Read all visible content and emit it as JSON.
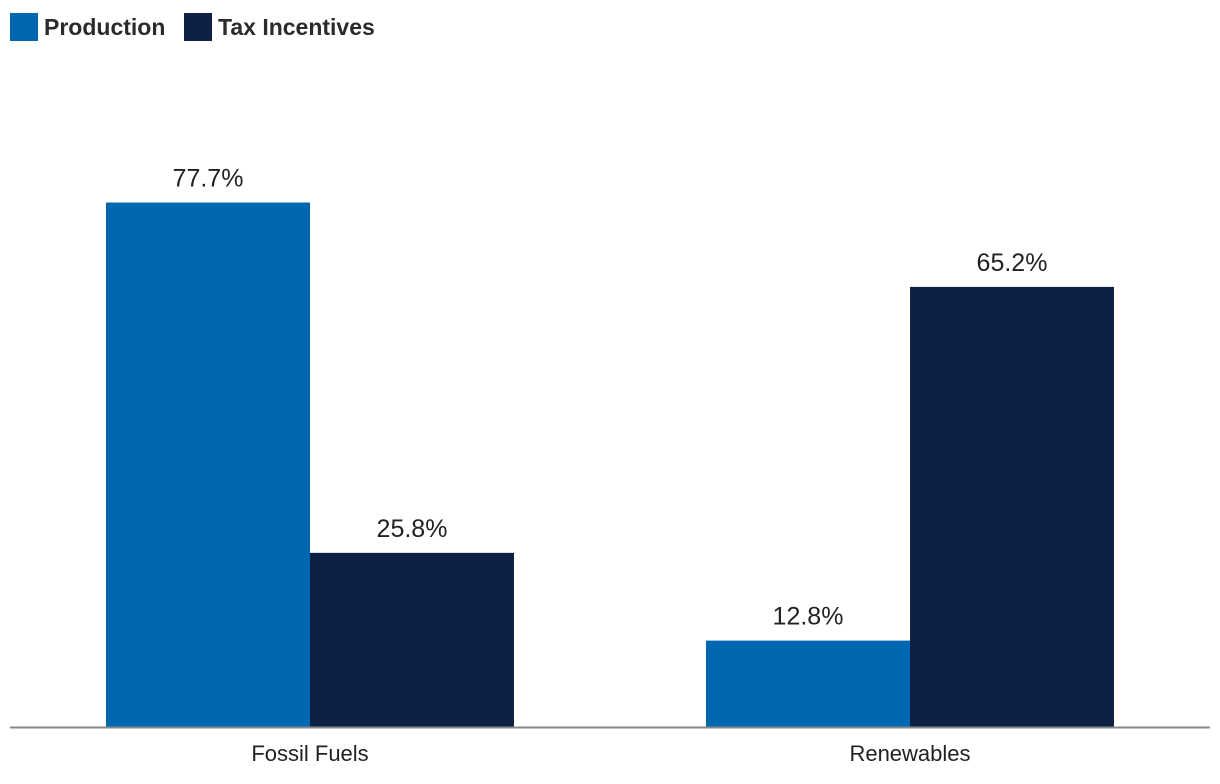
{
  "chart_data": {
    "type": "bar",
    "categories": [
      "Fossil Fuels",
      "Renewables"
    ],
    "series": [
      {
        "name": "Production",
        "values": [
          77.7,
          12.8
        ],
        "labels": [
          "77.7%",
          "12.8%"
        ],
        "color": "#0067b1"
      },
      {
        "name": "Tax Incentives",
        "values": [
          25.8,
          65.2
        ],
        "labels": [
          "25.8%",
          "65.2%"
        ],
        "color": "#0e2145"
      }
    ],
    "ylim": [
      0,
      100
    ],
    "grid": false,
    "legend": "top-left",
    "value_suffix": "%"
  },
  "colors": {
    "axis": "#888888"
  }
}
